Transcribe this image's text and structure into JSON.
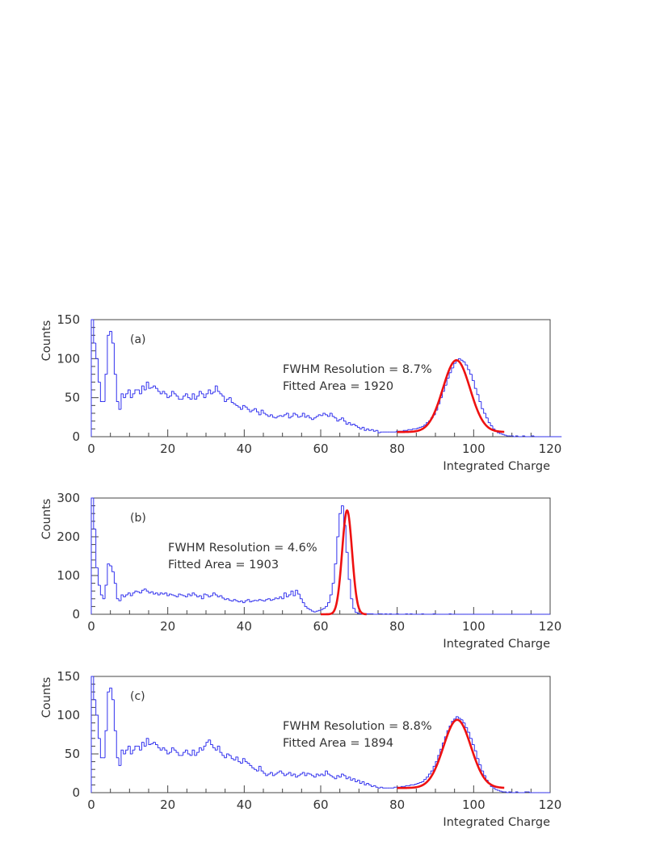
{
  "colors": {
    "histogram": "#3333ee",
    "fit": "#ee1111",
    "axes": "#444444"
  },
  "chart_data": [
    {
      "type": "histogram",
      "panel_label": "(a)",
      "xlabel": "Integrated Charge",
      "ylabel": "Counts",
      "xlim": [
        0,
        120
      ],
      "ylim": [
        0,
        150
      ],
      "xticks": [
        "0",
        "20",
        "40",
        "60",
        "80",
        "100",
        "120"
      ],
      "yticks": [
        "0",
        "50",
        "100",
        "150"
      ],
      "annotations": [
        "FWHM Resolution = 8.7%",
        "Fitted Area = 1920"
      ],
      "bin_width": 0.6,
      "counts": [
        150,
        120,
        100,
        70,
        45,
        45,
        80,
        130,
        135,
        120,
        80,
        45,
        35,
        55,
        50,
        55,
        60,
        50,
        55,
        60,
        60,
        55,
        65,
        60,
        70,
        62,
        63,
        65,
        62,
        58,
        55,
        58,
        55,
        50,
        52,
        58,
        55,
        52,
        48,
        48,
        52,
        55,
        50,
        48,
        55,
        48,
        52,
        58,
        55,
        50,
        55,
        60,
        55,
        57,
        65,
        58,
        55,
        52,
        45,
        48,
        50,
        44,
        42,
        40,
        38,
        35,
        40,
        38,
        35,
        32,
        34,
        36,
        32,
        28,
        34,
        30,
        28,
        26,
        28,
        25,
        24,
        26,
        27,
        26,
        28,
        30,
        24,
        26,
        30,
        28,
        25,
        26,
        30,
        25,
        27,
        24,
        22,
        24,
        26,
        28,
        27,
        30,
        28,
        26,
        30,
        26,
        24,
        20,
        22,
        24,
        20,
        16,
        18,
        15,
        16,
        14,
        12,
        10,
        12,
        8,
        10,
        8,
        9,
        7,
        8,
        5,
        6,
        6,
        6,
        6,
        6,
        6,
        6,
        7,
        7,
        7,
        8,
        8,
        9,
        9,
        10,
        10,
        11,
        12,
        13,
        15,
        18,
        20,
        24,
        28,
        34,
        42,
        50,
        58,
        66,
        75,
        82,
        88,
        94,
        97,
        100,
        98,
        96,
        92,
        86,
        80,
        72,
        62,
        54,
        45,
        36,
        30,
        24,
        18,
        14,
        10,
        7,
        5,
        4,
        3,
        2,
        1,
        1,
        1,
        0,
        1,
        0,
        0,
        1,
        0,
        0,
        0,
        1,
        0,
        0,
        0,
        0,
        0,
        0,
        0,
        0,
        0,
        0,
        0,
        0,
        0
      ],
      "fit": {
        "x_range": [
          80,
          108
        ],
        "baseline": 6,
        "amplitude": 92,
        "mean": 95.5,
        "sigma": 3.55
      },
      "annotation_pos": "upper-right"
    },
    {
      "type": "histogram",
      "panel_label": "(b)",
      "xlabel": "Integrated Charge",
      "ylabel": "Counts",
      "xlim": [
        0,
        120
      ],
      "ylim": [
        0,
        300
      ],
      "xticks": [
        "0",
        "20",
        "40",
        "60",
        "80",
        "100",
        "120"
      ],
      "yticks": [
        "0",
        "100",
        "200",
        "300"
      ],
      "annotations": [
        "FWHM Resolution = 4.6%",
        "Fitted Area = 1903"
      ],
      "bin_width": 0.6,
      "counts": [
        300,
        220,
        120,
        75,
        50,
        40,
        75,
        130,
        125,
        110,
        80,
        40,
        35,
        50,
        45,
        50,
        55,
        48,
        55,
        60,
        58,
        55,
        62,
        65,
        60,
        55,
        58,
        52,
        55,
        50,
        55,
        52,
        55,
        48,
        52,
        50,
        48,
        45,
        52,
        50,
        48,
        45,
        52,
        48,
        55,
        50,
        45,
        48,
        40,
        52,
        50,
        45,
        48,
        55,
        50,
        45,
        48,
        42,
        38,
        40,
        36,
        34,
        38,
        35,
        32,
        34,
        30,
        35,
        38,
        32,
        34,
        36,
        35,
        38,
        36,
        34,
        38,
        40,
        36,
        38,
        42,
        40,
        45,
        40,
        55,
        45,
        50,
        60,
        48,
        62,
        52,
        40,
        30,
        20,
        15,
        12,
        8,
        6,
        8,
        10,
        12,
        15,
        20,
        30,
        50,
        80,
        130,
        200,
        260,
        280,
        230,
        160,
        90,
        40,
        15,
        5,
        2,
        1,
        1,
        0,
        1,
        1,
        1,
        0,
        0,
        1,
        1,
        0,
        1,
        0,
        1,
        0,
        0,
        1,
        0,
        0,
        0,
        1,
        0,
        1,
        0,
        0,
        0,
        0,
        1,
        0,
        0,
        0,
        0,
        1,
        0,
        0,
        0,
        0,
        0,
        0,
        1,
        0,
        0,
        0,
        0,
        0,
        0,
        0,
        0,
        0,
        0,
        0,
        0,
        0,
        0,
        0,
        0,
        0,
        0,
        0,
        0,
        0,
        0,
        0,
        0,
        0,
        0,
        0,
        0,
        0,
        0,
        0,
        0,
        0,
        0,
        0,
        0,
        0,
        0,
        0,
        0,
        0,
        0,
        0
      ],
      "fit": {
        "x_range": [
          60,
          72
        ],
        "baseline": 0,
        "amplitude": 268,
        "mean": 66.9,
        "sigma": 1.3
      },
      "annotation_pos": "upper-middle"
    },
    {
      "type": "histogram",
      "panel_label": "(c)",
      "xlabel": "Integrated Charge",
      "ylabel": "Counts",
      "xlim": [
        0,
        120
      ],
      "ylim": [
        0,
        150
      ],
      "xticks": [
        "0",
        "20",
        "40",
        "60",
        "80",
        "100",
        "120"
      ],
      "yticks": [
        "0",
        "50",
        "100",
        "150"
      ],
      "annotations": [
        "FWHM Resolution = 8.8%",
        "Fitted Area = 1894"
      ],
      "bin_width": 0.6,
      "counts": [
        150,
        120,
        100,
        70,
        45,
        45,
        80,
        130,
        135,
        120,
        80,
        45,
        35,
        55,
        50,
        55,
        60,
        50,
        55,
        60,
        60,
        55,
        65,
        60,
        70,
        62,
        63,
        65,
        62,
        58,
        55,
        58,
        55,
        50,
        52,
        58,
        55,
        52,
        48,
        48,
        52,
        55,
        50,
        48,
        55,
        48,
        52,
        58,
        55,
        60,
        65,
        68,
        62,
        58,
        55,
        60,
        52,
        48,
        45,
        50,
        48,
        44,
        42,
        46,
        40,
        38,
        44,
        40,
        38,
        35,
        32,
        30,
        28,
        34,
        28,
        25,
        22,
        24,
        26,
        22,
        24,
        26,
        28,
        25,
        22,
        24,
        26,
        22,
        24,
        20,
        22,
        24,
        26,
        22,
        25,
        24,
        22,
        20,
        24,
        22,
        24,
        22,
        28,
        24,
        22,
        20,
        18,
        22,
        20,
        24,
        22,
        18,
        20,
        16,
        18,
        14,
        16,
        12,
        14,
        10,
        12,
        10,
        8,
        9,
        7,
        6,
        7,
        6,
        6,
        6,
        6,
        6,
        7,
        7,
        7,
        8,
        8,
        9,
        9,
        10,
        10,
        11,
        12,
        13,
        14,
        17,
        20,
        24,
        28,
        34,
        40,
        48,
        56,
        64,
        72,
        80,
        86,
        92,
        95,
        98,
        96,
        94,
        90,
        84,
        78,
        70,
        62,
        54,
        44,
        36,
        28,
        22,
        16,
        12,
        8,
        6,
        4,
        3,
        2,
        1,
        1,
        0,
        1,
        0,
        0,
        1,
        0,
        0,
        0,
        1,
        1,
        0,
        0,
        0,
        0,
        0,
        0,
        0,
        0,
        0,
        0
      ],
      "fit": {
        "x_range": [
          80,
          108
        ],
        "baseline": 6,
        "amplitude": 88,
        "mean": 95.7,
        "sigma": 3.6
      },
      "annotation_pos": "upper-right"
    }
  ]
}
